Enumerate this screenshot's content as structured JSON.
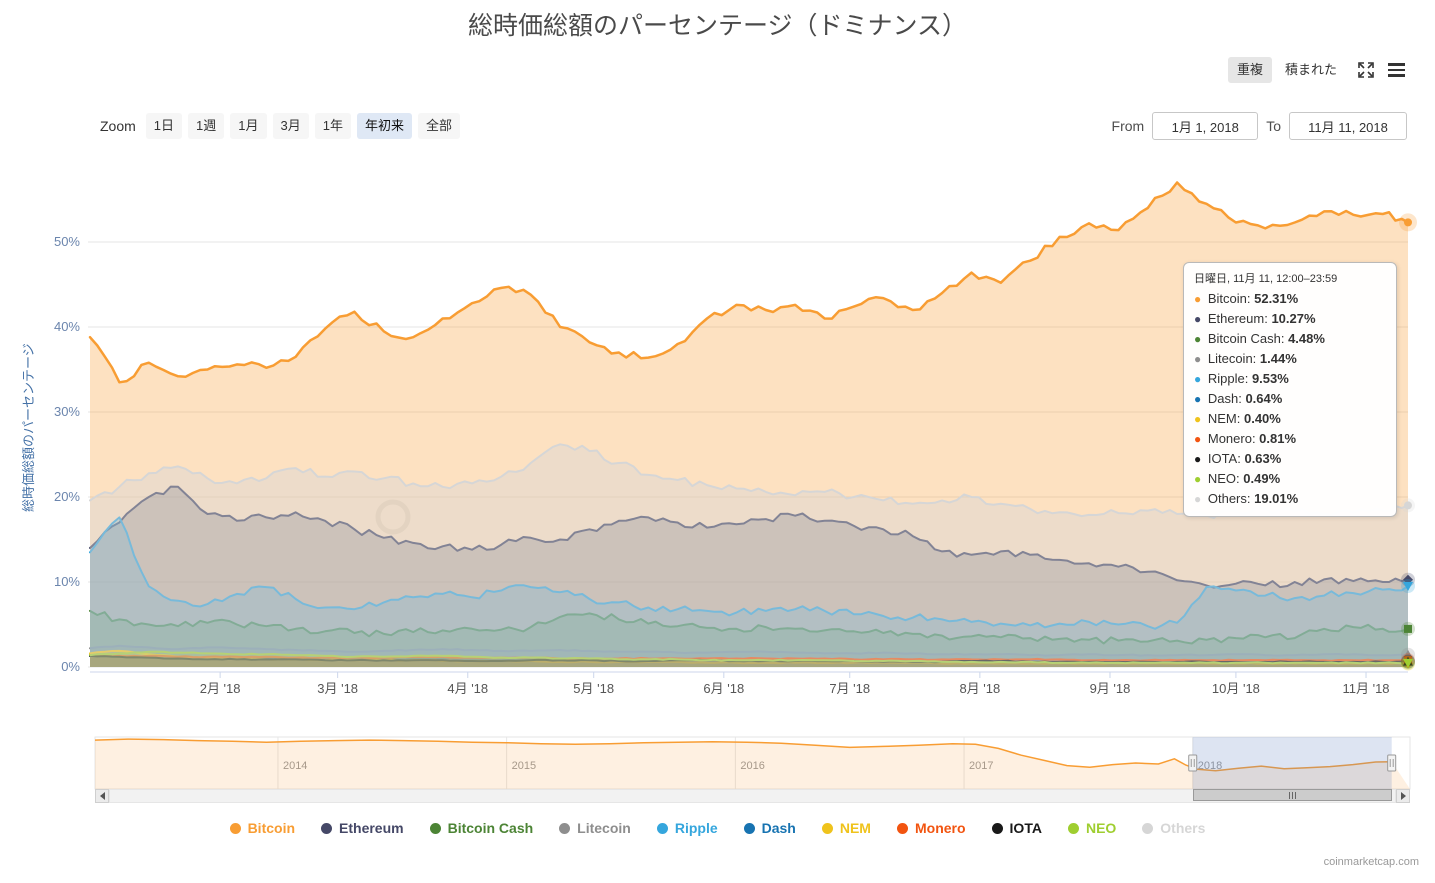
{
  "header": {
    "title": "総時価総額のパーセンテージ（ドミナンス）",
    "mode_buttons": [
      {
        "id": "overlapped",
        "label": "重複",
        "selected": true
      },
      {
        "id": "stacked",
        "label": "積まれた",
        "selected": false
      }
    ]
  },
  "toolbar": {
    "zoom_label": "Zoom",
    "ranges": [
      {
        "id": "1d",
        "label": "1日",
        "selected": false
      },
      {
        "id": "1w",
        "label": "1週",
        "selected": false
      },
      {
        "id": "1m",
        "label": "1月",
        "selected": false
      },
      {
        "id": "3m",
        "label": "3月",
        "selected": false
      },
      {
        "id": "1y",
        "label": "1年",
        "selected": false
      },
      {
        "id": "ytd",
        "label": "年初来",
        "selected": true
      },
      {
        "id": "all",
        "label": "全部",
        "selected": false
      }
    ],
    "from_label": "From",
    "from_value": "1月 1, 2018",
    "to_label": "To",
    "to_value": "11月 11, 2018"
  },
  "chart_data": {
    "type": "area",
    "mode": "overlapping (重複), not stacked",
    "title": "総時価総額のパーセンテージ（ドミナンス）",
    "xlabel": "",
    "ylabel": "総時価総額のパーセンテージ",
    "ylim": [
      0,
      60
    ],
    "grid": "horizontal",
    "legend_position": "bottom",
    "y_ticks": [
      "0%",
      "10%",
      "20%",
      "30%",
      "40%",
      "50%"
    ],
    "x_ticks": [
      {
        "label": "2月 '18",
        "day": 31
      },
      {
        "label": "3月 '18",
        "day": 59
      },
      {
        "label": "4月 '18",
        "day": 90
      },
      {
        "label": "5月 '18",
        "day": 120
      },
      {
        "label": "6月 '18",
        "day": 151
      },
      {
        "label": "7月 '18",
        "day": 181
      },
      {
        "label": "8月 '18",
        "day": 212
      },
      {
        "label": "9月 '18",
        "day": 243
      },
      {
        "label": "10月 '18",
        "day": 273
      },
      {
        "label": "11月 '18",
        "day": 304
      }
    ],
    "days": [
      0,
      7,
      14,
      21,
      28,
      35,
      42,
      49,
      56,
      63,
      70,
      77,
      84,
      91,
      98,
      105,
      112,
      119,
      126,
      133,
      140,
      147,
      154,
      161,
      168,
      175,
      182,
      189,
      196,
      203,
      210,
      217,
      224,
      231,
      238,
      245,
      252,
      259,
      266,
      273,
      280,
      287,
      294,
      301,
      308,
      314
    ],
    "series": [
      {
        "id": "bitcoin",
        "name": "Bitcoin",
        "color": "#f89d33",
        "marker": "circle",
        "values": [
          38.8,
          33.5,
          35.8,
          34.2,
          35.0,
          35.6,
          35.2,
          36.5,
          39.8,
          41.8,
          39.5,
          38.8,
          41.0,
          42.8,
          44.6,
          43.8,
          40.0,
          38.2,
          37.0,
          36.4,
          38.0,
          41.0,
          42.6,
          42.0,
          42.6,
          41.0,
          42.4,
          43.4,
          42.0,
          44.0,
          46.4,
          45.2,
          47.8,
          50.6,
          52.2,
          51.4,
          54.0,
          57.0,
          54.5,
          52.3,
          51.6,
          52.3,
          53.6,
          53.2,
          53.3,
          52.31
        ]
      },
      {
        "id": "ethereum",
        "name": "Ethereum",
        "color": "#454867",
        "marker": "diamond",
        "values": [
          14.0,
          17.0,
          20.0,
          21.2,
          18.0,
          17.2,
          17.6,
          18.2,
          17.2,
          16.2,
          15.2,
          14.6,
          14.2,
          13.8,
          14.4,
          15.2,
          15.0,
          16.2,
          17.2,
          17.6,
          17.0,
          16.4,
          16.8,
          17.4,
          17.8,
          17.2,
          16.6,
          16.2,
          15.4,
          13.6,
          13.2,
          13.6,
          13.2,
          12.6,
          12.2,
          11.8,
          11.2,
          10.2,
          9.6,
          9.8,
          9.6,
          10.0,
          10.3,
          10.1,
          10.0,
          10.27
        ]
      },
      {
        "id": "bitcoin-cash",
        "name": "Bitcoin Cash",
        "color": "#4c8435",
        "marker": "square",
        "values": [
          6.6,
          5.6,
          5.0,
          4.8,
          5.2,
          5.0,
          4.8,
          4.5,
          4.2,
          4.0,
          3.9,
          4.1,
          4.3,
          4.5,
          4.4,
          4.7,
          5.9,
          6.3,
          5.6,
          5.1,
          4.8,
          4.6,
          4.5,
          4.7,
          4.5,
          4.3,
          4.2,
          4.0,
          3.9,
          3.7,
          3.6,
          3.5,
          3.4,
          3.3,
          3.2,
          3.1,
          3.0,
          3.1,
          3.2,
          3.4,
          3.5,
          3.4,
          4.5,
          4.7,
          4.5,
          4.48
        ]
      },
      {
        "id": "litecoin",
        "name": "Litecoin",
        "color": "#8e8e8e",
        "marker": "triangle",
        "values": [
          2.2,
          2.5,
          2.3,
          2.1,
          2.3,
          2.2,
          2.1,
          2.0,
          1.9,
          1.8,
          1.9,
          2.0,
          2.1,
          2.0,
          1.9,
          1.9,
          2.0,
          1.9,
          1.8,
          1.8,
          1.7,
          1.7,
          1.8,
          1.8,
          1.7,
          1.6,
          1.6,
          1.7,
          1.6,
          1.5,
          1.5,
          1.5,
          1.4,
          1.4,
          1.5,
          1.4,
          1.4,
          1.4,
          1.4,
          1.5,
          1.4,
          1.4,
          1.5,
          1.5,
          1.4,
          1.44
        ]
      },
      {
        "id": "ripple",
        "name": "Ripple",
        "color": "#35a6dd",
        "marker": "triangle-down",
        "values": [
          13.5,
          17.6,
          9.5,
          7.8,
          7.4,
          8.6,
          9.4,
          8.0,
          7.0,
          6.8,
          7.6,
          8.2,
          8.6,
          8.2,
          9.0,
          9.4,
          8.8,
          8.0,
          7.6,
          7.0,
          6.8,
          6.6,
          6.4,
          6.6,
          6.8,
          6.6,
          6.2,
          6.0,
          5.8,
          5.6,
          5.3,
          5.1,
          4.9,
          5.1,
          5.3,
          5.0,
          4.8,
          5.2,
          9.4,
          9.0,
          8.4,
          8.1,
          8.4,
          8.7,
          9.1,
          9.53
        ]
      },
      {
        "id": "dash",
        "name": "Dash",
        "color": "#1773b1",
        "marker": "circle",
        "values": [
          1.3,
          1.2,
          1.1,
          1.0,
          1.1,
          1.0,
          1.0,
          0.9,
          0.9,
          0.9,
          0.9,
          1.0,
          1.0,
          0.9,
          0.9,
          0.9,
          0.9,
          0.8,
          0.8,
          0.9,
          0.8,
          0.8,
          0.8,
          0.8,
          0.8,
          0.8,
          0.7,
          0.7,
          0.7,
          0.7,
          0.7,
          0.7,
          0.7,
          0.6,
          0.6,
          0.6,
          0.6,
          0.6,
          0.6,
          0.7,
          0.7,
          0.6,
          0.6,
          0.6,
          0.6,
          0.64
        ]
      },
      {
        "id": "nem",
        "name": "NEM",
        "color": "#efc31c",
        "marker": "diamond",
        "values": [
          1.6,
          1.9,
          1.5,
          1.2,
          1.1,
          1.0,
          0.9,
          0.9,
          0.8,
          0.8,
          0.8,
          0.8,
          0.7,
          0.7,
          0.7,
          0.7,
          0.6,
          0.6,
          0.6,
          0.6,
          0.6,
          0.5,
          0.5,
          0.5,
          0.5,
          0.5,
          0.5,
          0.5,
          0.5,
          0.4,
          0.4,
          0.4,
          0.4,
          0.4,
          0.4,
          0.4,
          0.4,
          0.4,
          0.4,
          0.4,
          0.4,
          0.4,
          0.4,
          0.4,
          0.4,
          0.4
        ]
      },
      {
        "id": "monero",
        "name": "Monero",
        "color": "#f25410",
        "marker": "square",
        "values": [
          1.4,
          1.3,
          1.3,
          1.2,
          1.2,
          1.2,
          1.2,
          1.1,
          1.1,
          1.1,
          1.1,
          1.2,
          1.2,
          1.1,
          1.1,
          1.1,
          1.0,
          1.0,
          1.0,
          1.0,
          1.0,
          1.0,
          1.0,
          1.0,
          1.0,
          1.0,
          0.9,
          0.9,
          0.9,
          0.9,
          0.9,
          0.9,
          0.9,
          0.9,
          0.8,
          0.8,
          0.8,
          0.8,
          0.8,
          0.8,
          0.8,
          0.8,
          0.8,
          0.8,
          0.8,
          0.81
        ]
      },
      {
        "id": "iota",
        "name": "IOTA",
        "color": "#191919",
        "marker": "triangle",
        "values": [
          1.3,
          1.2,
          1.1,
          1.0,
          0.9,
          0.9,
          0.9,
          0.9,
          0.8,
          0.8,
          0.8,
          0.8,
          0.8,
          0.7,
          0.7,
          0.8,
          0.8,
          0.8,
          0.7,
          0.7,
          0.8,
          0.8,
          0.7,
          0.7,
          0.7,
          0.7,
          0.7,
          0.6,
          0.6,
          0.6,
          0.7,
          0.7,
          0.6,
          0.6,
          0.6,
          0.6,
          0.6,
          0.6,
          0.6,
          0.6,
          0.6,
          0.6,
          0.6,
          0.6,
          0.6,
          0.63
        ]
      },
      {
        "id": "neo",
        "name": "NEO",
        "color": "#9fce30",
        "marker": "triangle-down",
        "values": [
          1.4,
          1.6,
          1.8,
          1.7,
          1.6,
          1.5,
          1.5,
          1.4,
          1.3,
          1.2,
          1.2,
          1.3,
          1.3,
          1.2,
          1.1,
          1.1,
          1.0,
          1.0,
          0.9,
          0.9,
          0.9,
          0.8,
          0.8,
          0.8,
          0.8,
          0.8,
          0.7,
          0.7,
          0.7,
          0.6,
          0.6,
          0.6,
          0.6,
          0.5,
          0.5,
          0.5,
          0.5,
          0.5,
          0.5,
          0.5,
          0.5,
          0.5,
          0.5,
          0.5,
          0.5,
          0.49
        ]
      },
      {
        "id": "others",
        "name": "Others",
        "color": "#d6d6d6",
        "marker": "circle",
        "values": [
          19.6,
          21.2,
          22.8,
          23.6,
          22.2,
          21.6,
          22.2,
          23.4,
          22.4,
          23.0,
          22.2,
          21.6,
          21.2,
          21.6,
          22.4,
          24.0,
          26.2,
          25.4,
          24.0,
          22.6,
          22.0,
          21.4,
          21.0,
          20.6,
          20.2,
          20.6,
          20.0,
          19.6,
          19.2,
          19.6,
          20.0,
          19.2,
          18.6,
          18.2,
          17.9,
          18.1,
          18.4,
          18.0,
          17.8,
          18.3,
          18.6,
          18.3,
          18.0,
          18.2,
          18.4,
          19.01
        ]
      }
    ],
    "navigator": {
      "x_min": 2013.2,
      "x_max": 2018.95,
      "selected_start": 2018.0,
      "selected_end": 2018.87,
      "year_ticks": [
        "2014",
        "2015",
        "2016",
        "2017",
        "2018"
      ],
      "x": [
        2013.2,
        2013.35,
        2013.5,
        2013.65,
        2013.8,
        2013.95,
        2014.1,
        2014.25,
        2014.4,
        2014.55,
        2014.7,
        2014.85,
        2015.0,
        2015.15,
        2015.3,
        2015.45,
        2015.6,
        2015.75,
        2015.9,
        2016.05,
        2016.2,
        2016.35,
        2016.5,
        2016.65,
        2016.8,
        2016.95,
        2017.05,
        2017.15,
        2017.25,
        2017.35,
        2017.45,
        2017.55,
        2017.65,
        2017.75,
        2017.85,
        2017.92,
        2017.97,
        2018.02,
        2018.1,
        2018.2,
        2018.3,
        2018.4,
        2018.5,
        2018.6,
        2018.7,
        2018.8,
        2018.87
      ],
      "values": [
        94,
        96,
        95,
        93,
        92,
        90,
        92,
        93,
        94,
        93,
        92,
        90,
        89,
        87,
        86,
        87,
        89,
        90,
        91,
        90,
        88,
        84,
        80,
        82,
        84,
        87,
        86,
        78,
        65,
        55,
        45,
        42,
        47,
        50,
        48,
        58,
        46,
        38,
        35,
        40,
        44,
        39,
        41,
        43,
        47,
        52,
        52.3
      ]
    }
  },
  "tooltip": {
    "title": "日曜日, 11月 11, 12:00–23:59",
    "rows": [
      {
        "name": "Bitcoin",
        "value": "52.31%"
      },
      {
        "name": "Ethereum",
        "value": "10.27%"
      },
      {
        "name": "Bitcoin Cash",
        "value": "4.48%"
      },
      {
        "name": "Litecoin",
        "value": "1.44%"
      },
      {
        "name": "Ripple",
        "value": "9.53%"
      },
      {
        "name": "Dash",
        "value": "0.64%"
      },
      {
        "name": "NEM",
        "value": "0.40%"
      },
      {
        "name": "Monero",
        "value": "0.81%"
      },
      {
        "name": "IOTA",
        "value": "0.63%"
      },
      {
        "name": "NEO",
        "value": "0.49%"
      },
      {
        "name": "Others",
        "value": "19.01%"
      }
    ]
  },
  "footer": {
    "credit": "coinmarketcap.com"
  }
}
